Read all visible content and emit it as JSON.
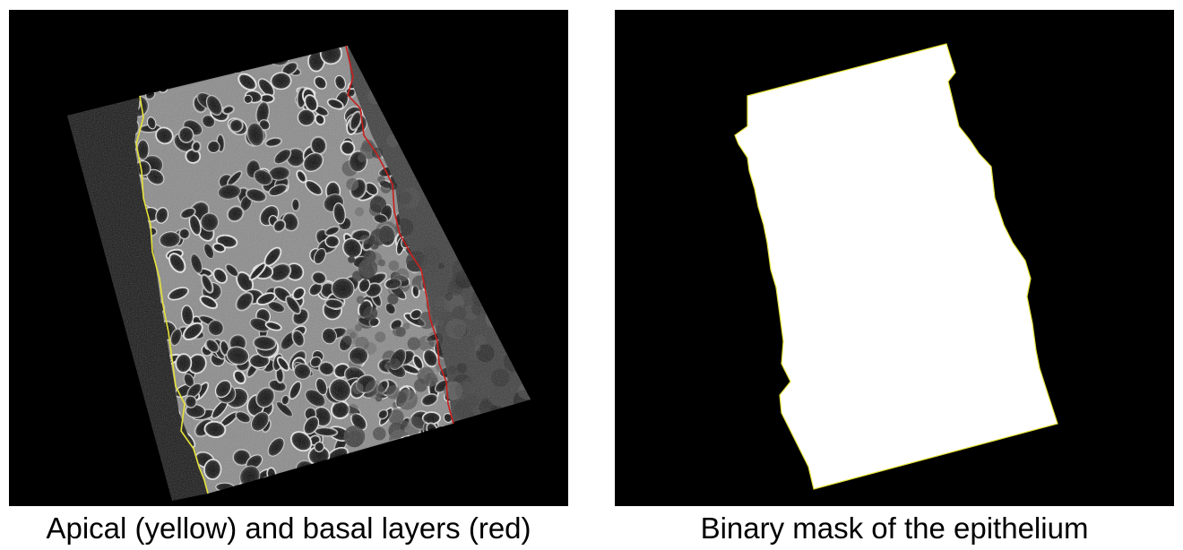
{
  "figure": {
    "panels": [
      {
        "id": "left",
        "caption": "Apical (yellow) and basal layers (red)",
        "content": "confocal-microscopy-epithelium",
        "apical_line_color": "#e6e23a",
        "basal_line_color": "#c8201e"
      },
      {
        "id": "right",
        "caption": "Binary mask of the epithelium",
        "content": "binary-mask",
        "mask_color": "#ffffff",
        "mask_edge_color": "#e6e23a"
      }
    ]
  }
}
